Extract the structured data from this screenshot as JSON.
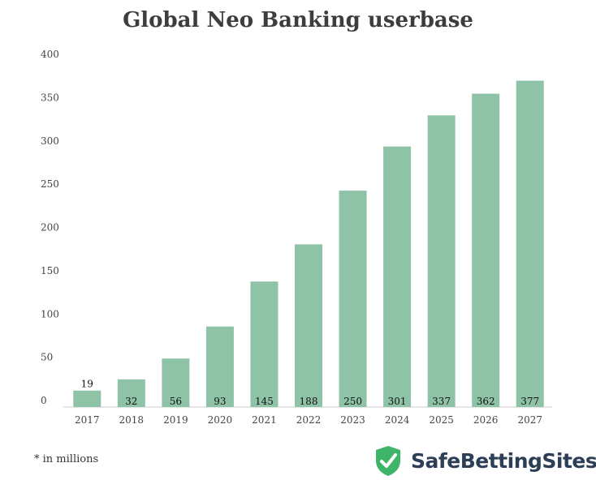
{
  "chart_data": {
    "type": "bar",
    "title": "Global Neo Banking userbase",
    "categories": [
      "2017",
      "2018",
      "2019",
      "2020",
      "2021",
      "2022",
      "2023",
      "2024",
      "2025",
      "2026",
      "2027"
    ],
    "values": [
      19,
      32,
      56,
      93,
      145,
      188,
      250,
      301,
      337,
      362,
      377
    ],
    "ylim": [
      0,
      400
    ],
    "yticks": [
      0,
      50,
      100,
      150,
      200,
      250,
      300,
      350,
      400
    ],
    "grid": false,
    "bar_color": "#8fc3a7",
    "xlabel": "",
    "ylabel": ""
  },
  "footnote": "* in millions",
  "brand": {
    "name": "SafeBettingSites",
    "icon": "shield-check-icon",
    "icon_color": "#3fb56a"
  }
}
